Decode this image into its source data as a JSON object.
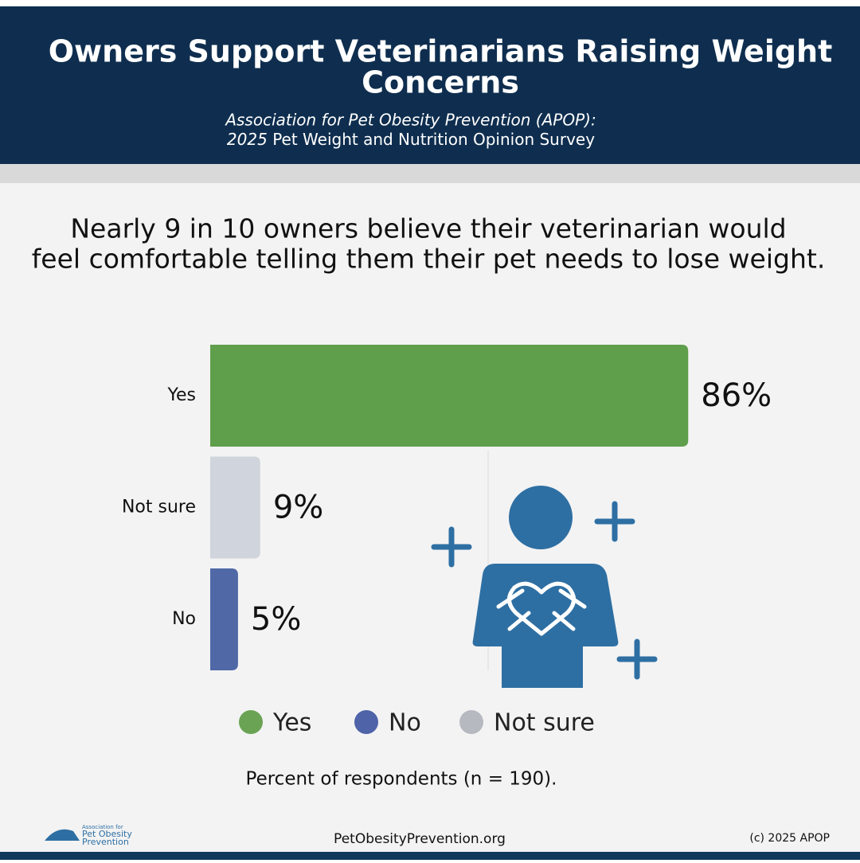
{
  "header": {
    "title": "Owners Support Veterinarians Raising Weight Concerns",
    "subtitle_line1": "Association for Pet Obesity Prevention (APOP):",
    "subtitle_year": "2025",
    "subtitle_line2": "Pet Weight and Nutrition Opinion Survey"
  },
  "headline": "Nearly 9 in 10 owners believe their veterinarian would feel comfortable telling them their pet needs to lose weight.",
  "chart_data": {
    "type": "bar",
    "orientation": "horizontal",
    "categories": [
      "Yes",
      "Not sure",
      "No"
    ],
    "values": [
      86,
      9,
      5
    ],
    "value_labels": [
      "86%",
      "9%",
      "5%"
    ],
    "colors": [
      "#5f9e4b",
      "#d0d4dc",
      "#5068a6"
    ],
    "legend": [
      {
        "name": "Yes",
        "color": "#6aa354"
      },
      {
        "name": "No",
        "color": "#4e63a8"
      },
      {
        "name": "Not sure",
        "color": "#b7b9c0"
      }
    ],
    "note": "Percent of respondents (n = 190)."
  },
  "footer": {
    "logo_line1": "Association for",
    "logo_line2": "Pet Obesity",
    "logo_line3": "Prevention",
    "website": "PetObesityPrevention.org",
    "copyright": "(c) 2025 APOP"
  }
}
